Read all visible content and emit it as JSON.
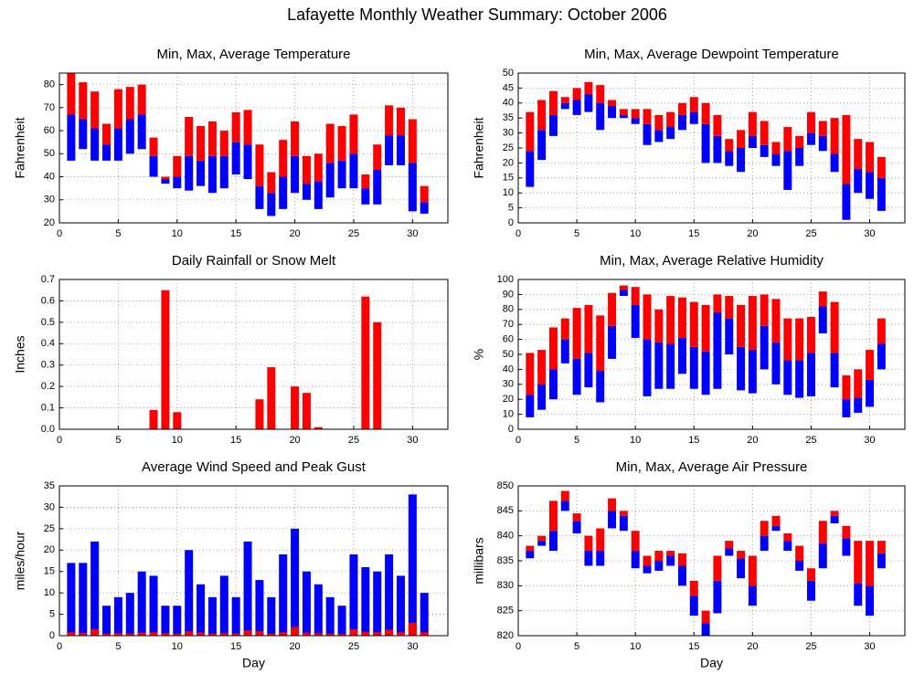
{
  "title": "Lafayette Monthly Weather Summary: October 2006",
  "chart_data": [
    {
      "type": "range_bar",
      "title": "Min, Max, Average Temperature",
      "ylabel": "Fahrenheit",
      "x": [
        1,
        2,
        3,
        4,
        5,
        6,
        7,
        8,
        9,
        10,
        11,
        12,
        13,
        14,
        15,
        16,
        17,
        18,
        19,
        20,
        21,
        22,
        23,
        24,
        25,
        26,
        27,
        28,
        29,
        30,
        31
      ],
      "series": [
        {
          "values": [
            47,
            52,
            47,
            47,
            47,
            50,
            52,
            40,
            37,
            35,
            34,
            36,
            33,
            35,
            41,
            39,
            26,
            23,
            26,
            33,
            30,
            26,
            31,
            35,
            35,
            28,
            28,
            45,
            45,
            25,
            24
          ]
        },
        {
          "color": "#0000ff",
          "values": [
            67,
            65,
            61,
            54,
            61,
            65,
            67,
            49,
            39,
            40,
            49,
            47,
            49,
            49,
            55,
            54,
            36,
            33,
            40,
            49,
            37,
            38,
            46,
            47,
            50,
            35,
            43,
            58,
            58,
            46,
            29
          ]
        },
        {
          "color": "#ff0000",
          "values": [
            85,
            81,
            77,
            63,
            78,
            79,
            80,
            57,
            40,
            49,
            66,
            62,
            64,
            60,
            68,
            69,
            54,
            42,
            56,
            64,
            49,
            50,
            63,
            62,
            67,
            41,
            54,
            71,
            70,
            65,
            36
          ]
        }
      ],
      "xlim": [
        0,
        33
      ],
      "xticks": [
        0,
        5,
        10,
        15,
        20,
        25,
        30
      ],
      "ylim": [
        20,
        85
      ],
      "yticks": [
        20,
        30,
        40,
        50,
        60,
        70,
        80
      ],
      "grid": true
    },
    {
      "type": "range_bar",
      "title": "Min, Max, Average Dewpoint Temperature",
      "ylabel": "Fahrenheit",
      "x": [
        1,
        2,
        3,
        4,
        5,
        6,
        7,
        8,
        9,
        10,
        11,
        12,
        13,
        14,
        15,
        16,
        17,
        18,
        19,
        20,
        21,
        22,
        23,
        24,
        25,
        26,
        27,
        28,
        29,
        30,
        31
      ],
      "series": [
        {
          "values": [
            12,
            21,
            29,
            38,
            36,
            37,
            31,
            35,
            35,
            33,
            26,
            27,
            28,
            31,
            33,
            20,
            20,
            19,
            17,
            25,
            22,
            19,
            11,
            19,
            26,
            24,
            17,
            1,
            10,
            8,
            4
          ]
        },
        {
          "color": "#0000ff",
          "values": [
            24,
            31,
            36,
            40,
            41,
            43,
            40,
            39,
            36,
            35,
            33,
            31,
            32,
            36,
            37,
            33,
            29,
            24,
            25,
            29,
            26,
            23,
            24,
            25,
            30,
            29,
            23,
            13,
            18,
            17,
            15
          ]
        },
        {
          "color": "#ff0000",
          "values": [
            37,
            41,
            44,
            42,
            45,
            47,
            46,
            41,
            38,
            38,
            38,
            36,
            37,
            40,
            42,
            40,
            36,
            28,
            31,
            37,
            34,
            27,
            32,
            29,
            37,
            34,
            35,
            36,
            28,
            27,
            22
          ]
        }
      ],
      "xlim": [
        0,
        33
      ],
      "xticks": [
        0,
        5,
        10,
        15,
        20,
        25,
        30
      ],
      "ylim": [
        0,
        50
      ],
      "yticks": [
        0,
        5,
        10,
        15,
        20,
        25,
        30,
        35,
        40,
        45,
        50
      ],
      "grid": true
    },
    {
      "type": "bar",
      "title": "Daily Rainfall or Snow Melt",
      "ylabel": "Inches",
      "color": "#ff0000",
      "x": [
        1,
        2,
        3,
        4,
        5,
        6,
        7,
        8,
        9,
        10,
        11,
        12,
        13,
        14,
        15,
        16,
        17,
        18,
        19,
        20,
        21,
        22,
        23,
        24,
        25,
        26,
        27,
        28,
        29,
        30,
        31
      ],
      "values": [
        0,
        0,
        0,
        0,
        0,
        0,
        0,
        0.09,
        0.65,
        0.08,
        0,
        0,
        0,
        0,
        0,
        0,
        0.14,
        0.29,
        0,
        0.2,
        0.17,
        0.01,
        0,
        0,
        0,
        0.62,
        0.5,
        0,
        0,
        0,
        0
      ],
      "xlim": [
        0,
        33
      ],
      "xticks": [
        0,
        5,
        10,
        15,
        20,
        25,
        30
      ],
      "ylim": [
        0,
        0.7
      ],
      "yticks": [
        {
          "value": 0,
          "label": "0.0"
        },
        0.1,
        0.2,
        0.3,
        0.4,
        0.5,
        0.6,
        0.7
      ],
      "grid": true
    },
    {
      "type": "range_bar",
      "title": "Min, Max, Average Relative Humidity",
      "ylabel": "%",
      "x": [
        1,
        2,
        3,
        4,
        5,
        6,
        7,
        8,
        9,
        10,
        11,
        12,
        13,
        14,
        15,
        16,
        17,
        18,
        19,
        20,
        21,
        22,
        23,
        24,
        25,
        26,
        27,
        28,
        29,
        30,
        31
      ],
      "series": [
        {
          "values": [
            8,
            13,
            20,
            44,
            23,
            28,
            18,
            47,
            89,
            61,
            22,
            27,
            27,
            37,
            27,
            23,
            27,
            50,
            26,
            24,
            40,
            30,
            23,
            21,
            22,
            64,
            28,
            8,
            11,
            15,
            40
          ]
        },
        {
          "color": "#0000ff",
          "values": [
            23,
            30,
            40,
            60,
            47,
            51,
            39,
            69,
            93,
            83,
            60,
            58,
            57,
            61,
            55,
            52,
            78,
            74,
            55,
            53,
            69,
            58,
            46,
            46,
            51,
            82,
            51,
            20,
            21,
            33,
            57
          ]
        },
        {
          "color": "#ff0000",
          "values": [
            51,
            53,
            68,
            74,
            81,
            83,
            76,
            91,
            96,
            95,
            90,
            80,
            89,
            88,
            85,
            83,
            90,
            89,
            83,
            89,
            90,
            87,
            74,
            74,
            75,
            92,
            85,
            36,
            40,
            53,
            74
          ]
        }
      ],
      "xlim": [
        0,
        33
      ],
      "xticks": [
        0,
        5,
        10,
        15,
        20,
        25,
        30
      ],
      "ylim": [
        0,
        100
      ],
      "yticks": [
        0,
        10,
        20,
        30,
        40,
        50,
        60,
        70,
        80,
        90,
        100
      ],
      "grid": true
    },
    {
      "type": "overlay_bar",
      "title": "Average Wind Speed and Peak Gust",
      "ylabel": "miles/hour",
      "xlabel": "Day",
      "x": [
        1,
        2,
        3,
        4,
        5,
        6,
        7,
        8,
        9,
        10,
        11,
        12,
        13,
        14,
        15,
        16,
        17,
        18,
        19,
        20,
        21,
        22,
        23,
        24,
        25,
        26,
        27,
        28,
        29,
        30,
        31
      ],
      "series": [
        {
          "color": "#ff0000",
          "values": [
            0.8,
            0.6,
            1.5,
            0.5,
            0.6,
            0.5,
            0.7,
            0.8,
            0.6,
            0.5,
            1.0,
            0.7,
            0.5,
            0.6,
            0.5,
            1.2,
            1.0,
            0.5,
            0.8,
            2.0,
            0.7,
            0.6,
            0.5,
            0.4,
            1.5,
            0.9,
            0.8,
            1.4,
            0.8,
            3.0,
            0.8
          ]
        },
        {
          "color": "#0000ff",
          "values": [
            17,
            17,
            22,
            7,
            9,
            10,
            15,
            14,
            7,
            7,
            20,
            12,
            9,
            14,
            9,
            22,
            13,
            9,
            19,
            25,
            15,
            12,
            9,
            7,
            19,
            16,
            15,
            19,
            14,
            33,
            10
          ]
        }
      ],
      "xlim": [
        0,
        33
      ],
      "xticks": [
        0,
        5,
        10,
        15,
        20,
        25,
        30
      ],
      "ylim": [
        0,
        35
      ],
      "yticks": [
        0,
        5,
        10,
        15,
        20,
        25,
        30,
        35
      ],
      "grid": true
    },
    {
      "type": "range_bar",
      "title": "Min, Max, Average Air Pressure",
      "ylabel": "millibars",
      "xlabel": "Day",
      "x": [
        1,
        2,
        3,
        4,
        5,
        6,
        7,
        8,
        9,
        10,
        11,
        12,
        13,
        14,
        15,
        16,
        17,
        18,
        19,
        20,
        21,
        22,
        23,
        24,
        25,
        26,
        27,
        28,
        29,
        30,
        31
      ],
      "series": [
        {
          "values": [
            835.5,
            838,
            837,
            845,
            840.5,
            834,
            834,
            841.5,
            841,
            833.5,
            832.5,
            833,
            834,
            830,
            824,
            820,
            824.5,
            836,
            831.5,
            826,
            837,
            841,
            837,
            833,
            827,
            833.5,
            842.5,
            836,
            826,
            824,
            833.5
          ]
        },
        {
          "color": "#0000ff",
          "values": [
            837,
            839,
            841,
            847,
            843,
            837,
            837,
            845,
            844,
            837,
            834,
            835,
            836,
            834,
            828,
            822.5,
            831,
            837.5,
            835.5,
            830,
            840,
            842,
            839,
            835,
            831,
            838.5,
            844,
            839.5,
            830.5,
            830,
            836.5
          ]
        },
        {
          "color": "#ff0000",
          "values": [
            838,
            840,
            847,
            849,
            844.5,
            840,
            841.5,
            847.5,
            845,
            841,
            836,
            837,
            837,
            836.5,
            831,
            825,
            836,
            839,
            837,
            836,
            843,
            844,
            840.5,
            838,
            833.5,
            843,
            845,
            842,
            839,
            839,
            839
          ]
        }
      ],
      "xlim": [
        0,
        33
      ],
      "xticks": [
        0,
        5,
        10,
        15,
        20,
        25,
        30
      ],
      "ylim": [
        820,
        850
      ],
      "yticks": [
        820,
        825,
        830,
        835,
        840,
        845,
        850
      ],
      "grid": true
    }
  ]
}
